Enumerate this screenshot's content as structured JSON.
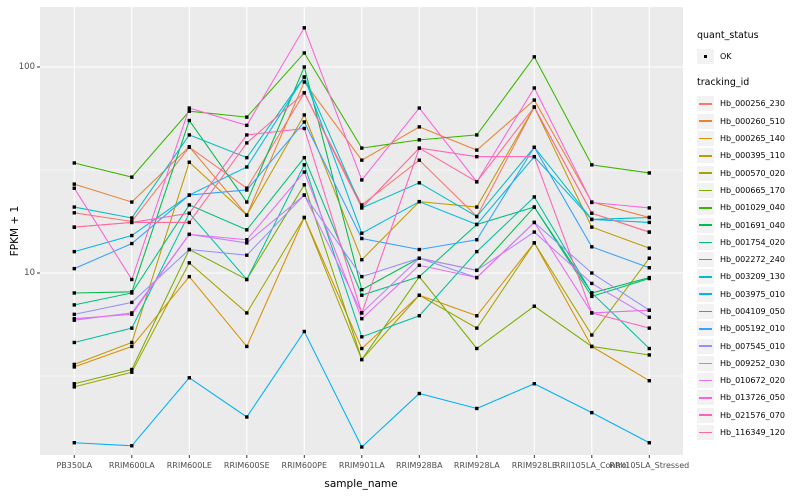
{
  "figure": {
    "y_axis": {
      "title": "FPKM + 1",
      "tick_labels": [
        "100",
        "10"
      ]
    },
    "x_axis": {
      "title": "sample_name"
    },
    "legend": {
      "quant": {
        "title": "quant_status",
        "items": [
          {
            "label": "OK",
            "marker": "black-point"
          }
        ]
      },
      "tracking": {
        "title": "tracking_id"
      }
    }
  },
  "colors": {
    "panel_background": "#EBEBEB",
    "grid": "#FFFFFF",
    "axis_text": "#4D4D4D",
    "tick_mark": "#333333",
    "point": "#000000",
    "legend_key_background": "#F2F2F2"
  },
  "chart_data": {
    "type": "line",
    "title": "",
    "xlabel": "sample_name",
    "ylabel": "FPKM + 1",
    "y_scale": "log10",
    "ylim": [
      1.3,
      196
    ],
    "y_major_gridlines": [
      10,
      100
    ],
    "y_minor_gridlines": [
      3.162,
      31.62
    ],
    "grid": "on",
    "legend_position": "right",
    "point_marker": "small black point on every value (quant_status = OK)",
    "categories": [
      "PB350LA",
      "RRIM600LA",
      "RRIM600LE",
      "RRIM600SE",
      "RRIM600PE",
      "RRIM901LA",
      "RRIM928BA",
      "RRIM928LA",
      "RRIM928LE",
      "RRII105LA_Control",
      "RRII105LA_Stressed"
    ],
    "series": [
      {
        "name": "Hb_000256_230",
        "color": "#F8766D",
        "values": [
          19.6,
          17.8,
          40.8,
          25.8,
          74.9,
          21.4,
          35.3,
          18.8,
          63.9,
          19.5,
          15.8
        ]
      },
      {
        "name": "Hb_000260_510",
        "color": "#EA8331",
        "values": [
          27.0,
          22.1,
          41.0,
          19.1,
          84.6,
          35.3,
          51.2,
          39.5,
          69.1,
          22.1,
          18.6
        ]
      },
      {
        "name": "Hb_000265_140",
        "color": "#D89000",
        "values": [
          3.5,
          4.4,
          9.6,
          4.4,
          18.6,
          4.3,
          7.8,
          6.2,
          14.0,
          4.4,
          3.0
        ]
      },
      {
        "name": "Hb_000395_110",
        "color": "#C09B00",
        "values": [
          3.6,
          4.6,
          34.5,
          19.1,
          58.5,
          11.6,
          22.2,
          20.9,
          63.9,
          16.7,
          13.2
        ]
      },
      {
        "name": "Hb_000570_020",
        "color": "#A3A500",
        "values": [
          2.8,
          3.3,
          11.2,
          6.4,
          18.6,
          3.8,
          7.8,
          5.4,
          14.0,
          5.0,
          11.8
        ]
      },
      {
        "name": "Hb_000665_170",
        "color": "#7CAE00",
        "values": [
          2.9,
          3.4,
          13.0,
          9.3,
          26.8,
          3.8,
          9.6,
          4.3,
          6.9,
          4.4,
          4.0
        ]
      },
      {
        "name": "Hb_001029_040",
        "color": "#39B600",
        "values": [
          34.2,
          29.2,
          61.0,
          57.1,
          117.0,
          40.4,
          44.3,
          46.8,
          112.0,
          33.5,
          30.6
        ]
      },
      {
        "name": "Hb_001691_040",
        "color": "#00BB4E",
        "values": [
          8.0,
          8.1,
          55.0,
          22.1,
          100.0,
          8.3,
          11.8,
          10.3,
          20.9,
          8.0,
          9.5
        ]
      },
      {
        "name": "Hb_001754_020",
        "color": "#00BF7D",
        "values": [
          7.0,
          8.0,
          21.4,
          16.2,
          36.3,
          7.8,
          9.6,
          17.2,
          20.9,
          7.7,
          9.4
        ]
      },
      {
        "name": "Hb_002272_240",
        "color": "#00C1A3",
        "values": [
          4.6,
          5.4,
          19.5,
          9.3,
          33.5,
          4.9,
          6.2,
          12.7,
          23.4,
          8.0,
          4.3
        ]
      },
      {
        "name": "Hb_003209_130",
        "color": "#00BFC4",
        "values": [
          20.9,
          18.5,
          46.8,
          36.3,
          89.4,
          20.7,
          27.4,
          18.8,
          40.8,
          18.2,
          18.6
        ]
      },
      {
        "name": "Hb_003975_010",
        "color": "#00BAE0",
        "values": [
          12.7,
          15.2,
          23.9,
          32.7,
          89.4,
          15.6,
          22.2,
          17.2,
          36.7,
          18.2,
          17.6
        ]
      },
      {
        "name": "Hb_004109_050",
        "color": "#00B0F6",
        "values": [
          1.5,
          1.45,
          3.1,
          2.0,
          5.2,
          1.43,
          2.6,
          2.2,
          2.9,
          2.1,
          1.5
        ]
      },
      {
        "name": "Hb_005192_010",
        "color": "#35A2FF",
        "values": [
          10.5,
          13.9,
          23.9,
          25.3,
          54.1,
          14.7,
          13.0,
          14.5,
          40.8,
          13.4,
          10.6
        ]
      },
      {
        "name": "Hb_007545_010",
        "color": "#9590FF",
        "values": [
          6.3,
          7.2,
          13.0,
          12.2,
          23.9,
          9.6,
          11.8,
          9.5,
          17.6,
          10.0,
          6.6
        ]
      },
      {
        "name": "Hb_009252_030",
        "color": "#C77CFF",
        "values": [
          5.9,
          6.4,
          15.4,
          14.0,
          23.9,
          6.4,
          11.8,
          10.3,
          15.8,
          8.9,
          6.1
        ]
      },
      {
        "name": "Hb_010672_020",
        "color": "#E76BF3",
        "values": [
          6.0,
          6.3,
          15.4,
          14.5,
          30.9,
          6.0,
          10.9,
          9.5,
          17.6,
          6.4,
          6.6
        ]
      },
      {
        "name": "Hb_013726_050",
        "color": "#FA62DB",
        "values": [
          25.8,
          9.3,
          63.2,
          52.1,
          155.0,
          28.3,
          63.2,
          27.7,
          79.1,
          22.0,
          20.7
        ]
      },
      {
        "name": "Hb_021576_070",
        "color": "#FF62BC",
        "values": [
          16.7,
          17.6,
          19.5,
          46.8,
          50.3,
          6.4,
          40.4,
          36.7,
          36.7,
          6.4,
          5.4
        ]
      },
      {
        "name": "Hb_116349_120",
        "color": "#FF6A98",
        "values": [
          16.7,
          17.6,
          17.6,
          42.8,
          74.9,
          20.7,
          40.4,
          27.7,
          63.9,
          19.5,
          15.8
        ]
      }
    ]
  }
}
